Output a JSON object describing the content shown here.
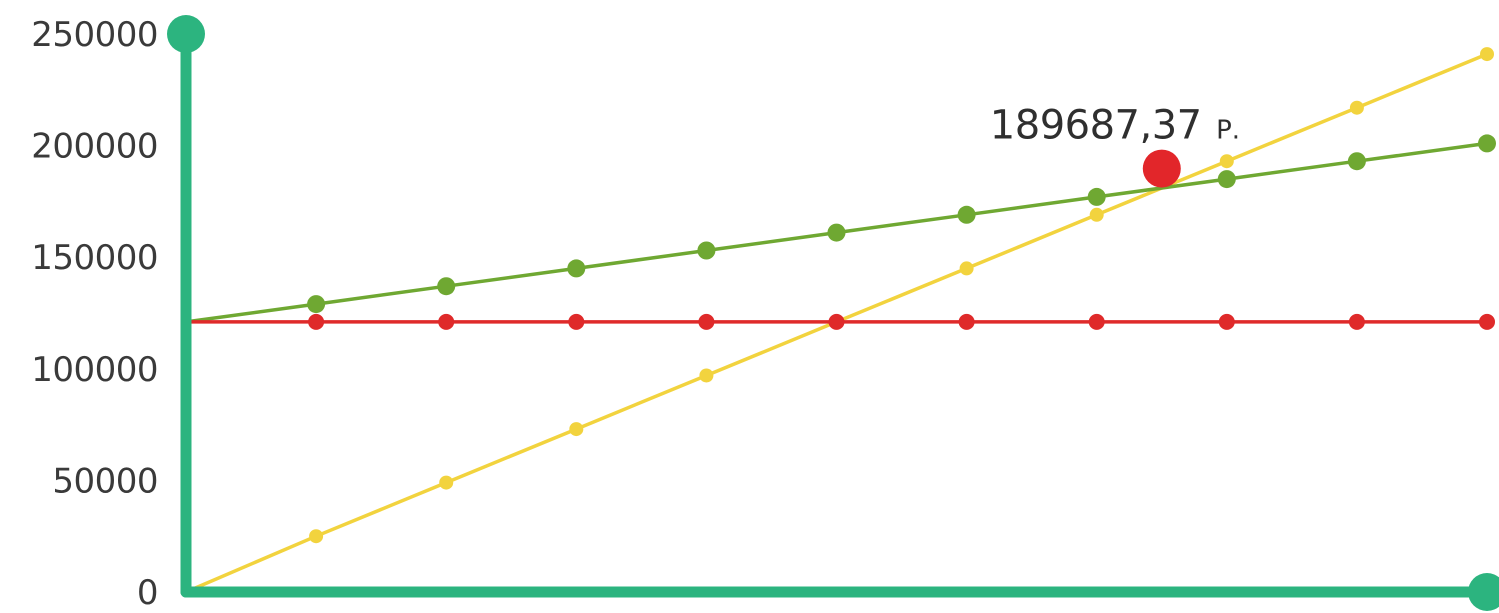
{
  "chart_data": {
    "type": "line",
    "title": "",
    "xlabel": "",
    "ylabel": "",
    "ylim": [
      0,
      250000
    ],
    "y_ticks": [
      "0",
      "50000",
      "100000",
      "150000",
      "200000",
      "250000"
    ],
    "x": [
      0,
      1,
      2,
      3,
      4,
      5,
      6,
      7,
      8,
      9,
      10
    ],
    "series": [
      {
        "color": "#f2d33e",
        "values": [
          0,
          25000,
          49000,
          73000,
          97000,
          121000,
          145000,
          169000,
          193000,
          217000,
          241000
        ]
      },
      {
        "color": "#6fa832",
        "values": [
          121000,
          129000,
          137000,
          145000,
          153000,
          161000,
          169000,
          177000,
          185000,
          193000,
          201000
        ]
      },
      {
        "color": "#df2a2a",
        "values": [
          121000,
          121000,
          121000,
          121000,
          121000,
          121000,
          121000,
          121000,
          121000,
          121000,
          121000
        ]
      }
    ],
    "annotation": {
      "value_text": "189687,37",
      "unit_text": "Р.",
      "x": 7.5,
      "y": 189687.37,
      "color": "#e2262a"
    },
    "axis_color": "#2cb47f",
    "grid": false
  }
}
